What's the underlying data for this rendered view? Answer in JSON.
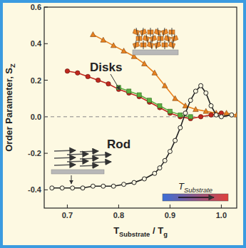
{
  "chart_data": {
    "type": "line",
    "x_label": [
      {
        "text": "T"
      },
      {
        "sub": "Substrate"
      },
      {
        "text": " / T"
      },
      {
        "sub": "g"
      }
    ],
    "y_label": [
      {
        "text": "Order Parameter, S"
      },
      {
        "sub": "Z"
      }
    ],
    "xlim": [
      0.655,
      1.03
    ],
    "ylim": [
      -0.5,
      0.6
    ],
    "xticks": [
      0.7,
      0.8,
      0.9,
      {
        "value": 1,
        "label": "1.0"
      }
    ],
    "yticks": [
      -0.4,
      -0.2,
      {
        "value": 0,
        "label": "0.0"
      },
      0.2,
      0.4,
      0.6
    ],
    "hline": 0,
    "annotations": [
      {
        "parts": [
          {
            "text": "Disks"
          }
        ]
      },
      {
        "parts": [
          {
            "text": "Rod"
          }
        ]
      },
      {
        "parts": [
          {
            "text": "T"
          },
          {
            "sub": "Substrate"
          }
        ]
      }
    ],
    "series": [
      {
        "color": "#e8821e",
        "marker": "triangle",
        "line_style": "solid",
        "x": [
          0.75,
          0.77,
          0.79,
          0.81,
          0.83,
          0.85,
          0.87,
          0.89,
          0.91,
          0.93,
          0.95,
          0.97,
          0.99,
          1.01,
          1.03
        ],
        "values": [
          0.45,
          0.42,
          0.39,
          0.36,
          0.33,
          0.29,
          0.24,
          0.17,
          0.1,
          0.06,
          0.04,
          0.03,
          0.02,
          0.02,
          0.01
        ]
      },
      {
        "color": "#c0281e",
        "marker": "circle",
        "line_style": "solid",
        "x": [
          0.7,
          0.72,
          0.74,
          0.76,
          0.78,
          0.8,
          0.82,
          0.84,
          0.86,
          0.88,
          0.9,
          0.92,
          0.94,
          0.96,
          0.98,
          1.0
        ],
        "values": [
          0.25,
          0.24,
          0.22,
          0.2,
          0.18,
          0.15,
          0.13,
          0.11,
          0.08,
          0.05,
          0.02,
          0.0,
          -0.01,
          0.0,
          0.01,
          0.02
        ]
      },
      {
        "color": "#5cb040",
        "marker": "square",
        "line_style": "solid",
        "x": [
          0.8,
          0.82,
          0.84,
          0.86,
          0.88,
          0.9,
          0.92,
          0.94
        ],
        "values": [
          0.16,
          0.14,
          0.12,
          0.09,
          0.06,
          0.03,
          0.01,
          0.0
        ]
      },
      {
        "color": "#222222",
        "marker": "open-circle",
        "line_style": "solid",
        "x": [
          0.67,
          0.69,
          0.71,
          0.73,
          0.75,
          0.77,
          0.79,
          0.81,
          0.83,
          0.85,
          0.87,
          0.88,
          0.89,
          0.9,
          0.91,
          0.92,
          0.93,
          0.94,
          0.95,
          0.96,
          0.97,
          0.98,
          0.99,
          1.0,
          1.02
        ],
        "values": [
          -0.39,
          -0.39,
          -0.39,
          -0.39,
          -0.38,
          -0.38,
          -0.38,
          -0.37,
          -0.36,
          -0.34,
          -0.31,
          -0.28,
          -0.24,
          -0.19,
          -0.13,
          -0.06,
          0.02,
          0.09,
          0.14,
          0.17,
          0.13,
          0.06,
          0.01,
          0.0,
          0.01
        ]
      }
    ]
  }
}
